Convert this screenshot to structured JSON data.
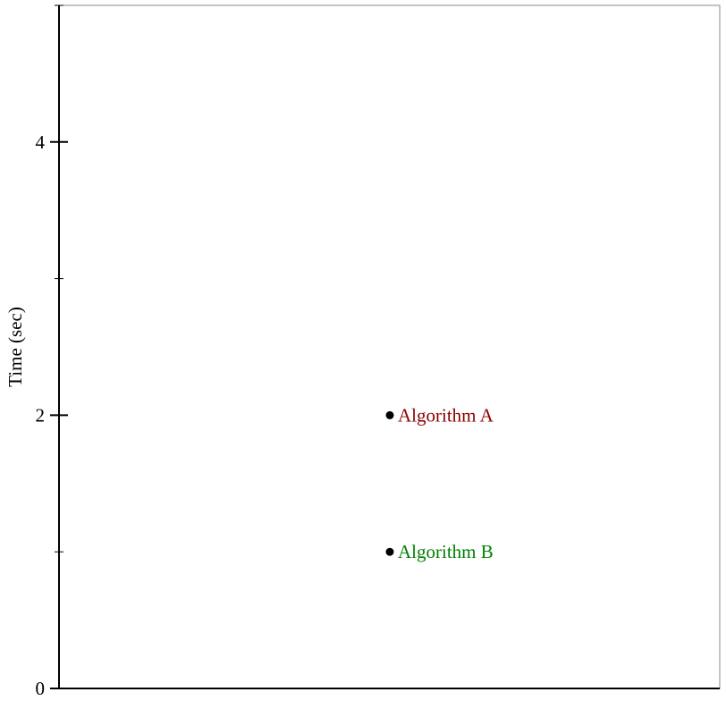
{
  "chart_data": {
    "type": "scatter",
    "title": "",
    "xlabel": "",
    "ylabel": "Time (sec)",
    "ylim": [
      0,
      5
    ],
    "y_ticks_major": [
      0,
      2,
      4
    ],
    "y_tick_labels": [
      "0",
      "2",
      "4"
    ],
    "y_ticks_minor": [
      1,
      3,
      5
    ],
    "grid": false,
    "points": [
      {
        "label": "Algorithm A",
        "y": 2,
        "color": "#8b0000",
        "marker_color": "#000000"
      },
      {
        "label": "Algorithm B",
        "y": 1,
        "color": "#008000",
        "marker_color": "#000000"
      }
    ]
  }
}
